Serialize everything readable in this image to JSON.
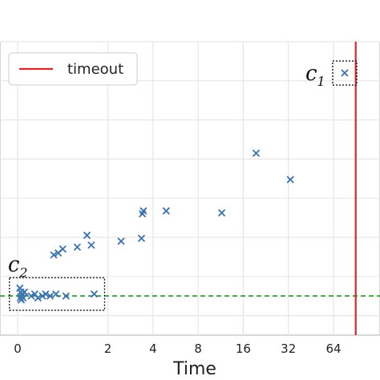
{
  "chart_data": {
    "type": "scatter",
    "xlabel": "Time",
    "ylabel": "",
    "title": "",
    "x_scale": "symlog",
    "x_ticks": [
      0,
      2,
      4,
      8,
      16,
      32,
      64
    ],
    "x_tick_labels": [
      "0",
      "2",
      "4",
      "8",
      "16",
      "32",
      "64"
    ],
    "xlim": [
      -0.1,
      100
    ],
    "ylim": [
      -1,
      14
    ],
    "grid": true,
    "legend": {
      "placement": "top-left",
      "entries": [
        {
          "label": "timeout",
          "color": "#d62728",
          "kind": "line"
        }
      ]
    },
    "timeout_x": 90,
    "baseline_y": 1.0,
    "baseline_color": "#3a9a3a",
    "marker_color": "#3b73af",
    "points": [
      {
        "x": 0.05,
        "y": 1.4
      },
      {
        "x": 0.06,
        "y": 0.9
      },
      {
        "x": 0.07,
        "y": 1.2
      },
      {
        "x": 0.08,
        "y": 0.8
      },
      {
        "x": 0.09,
        "y": 1.0
      },
      {
        "x": 0.1,
        "y": 1.1
      },
      {
        "x": 0.12,
        "y": 0.9
      },
      {
        "x": 0.15,
        "y": 1.2
      },
      {
        "x": 0.3,
        "y": 1.0
      },
      {
        "x": 0.38,
        "y": 1.1
      },
      {
        "x": 0.45,
        "y": 0.9
      },
      {
        "x": 0.55,
        "y": 1.0
      },
      {
        "x": 0.62,
        "y": 1.1
      },
      {
        "x": 0.72,
        "y": 1.0
      },
      {
        "x": 0.85,
        "y": 1.1
      },
      {
        "x": 1.05,
        "y": 1.0
      },
      {
        "x": 0.8,
        "y": 3.1
      },
      {
        "x": 0.9,
        "y": 3.2
      },
      {
        "x": 1.0,
        "y": 3.4
      },
      {
        "x": 1.25,
        "y": 3.5
      },
      {
        "x": 1.45,
        "y": 4.1
      },
      {
        "x": 1.55,
        "y": 3.6
      },
      {
        "x": 1.62,
        "y": 1.1
      },
      {
        "x": 2.45,
        "y": 3.8
      },
      {
        "x": 3.35,
        "y": 3.95
      },
      {
        "x": 3.4,
        "y": 5.2
      },
      {
        "x": 3.45,
        "y": 5.35
      },
      {
        "x": 4.9,
        "y": 5.35
      },
      {
        "x": 11.5,
        "y": 5.25
      },
      {
        "x": 19.5,
        "y": 8.3
      },
      {
        "x": 33.0,
        "y": 6.95
      },
      {
        "x": 76.0,
        "y": 12.4
      }
    ],
    "annotations": [
      {
        "label": "c",
        "subscript": "1"
      },
      {
        "label": "c",
        "subscript": "2"
      }
    ]
  }
}
